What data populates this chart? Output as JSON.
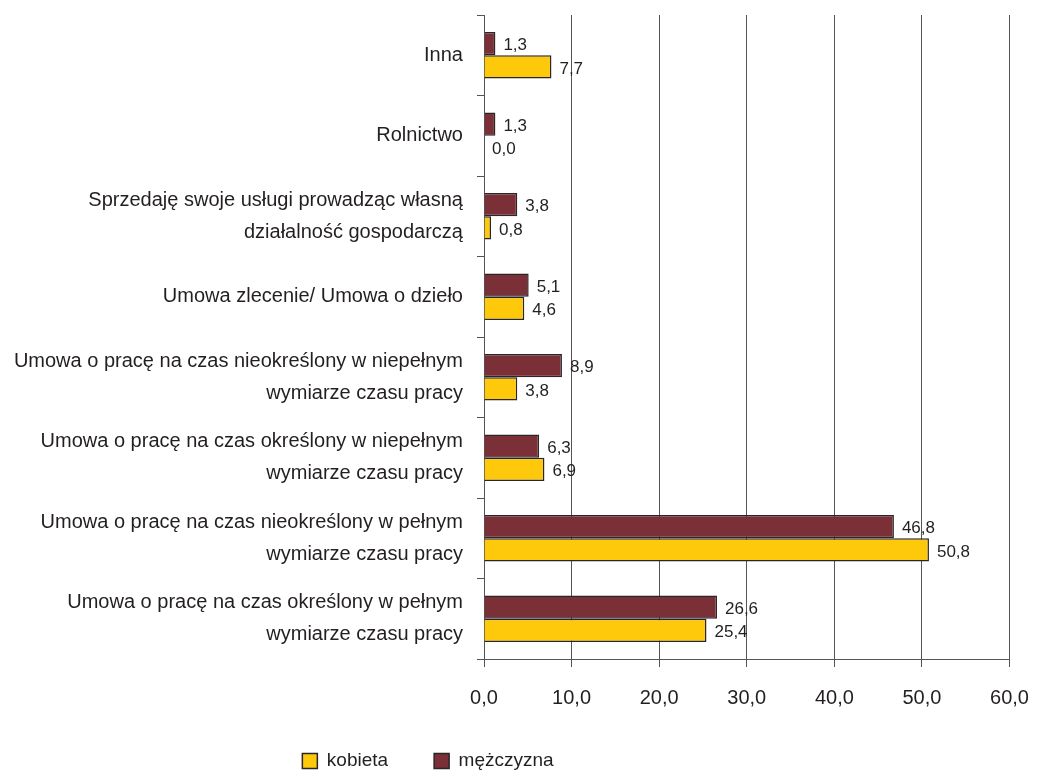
{
  "chart_data": {
    "type": "bar",
    "orientation": "horizontal",
    "categories": [
      "Inna",
      "Rolnictwo",
      "Sprzedaję swoje usługi prowadząc własną działalność gospodarczą",
      "Umowa zlecenie/ Umowa o dzieło",
      "Umowa o pracę na czas nieokreślony w niepełnym wymiarze czasu pracy",
      "Umowa o pracę na czas określony w niepełnym wymiarze czasu pracy",
      "Umowa o pracę na czas nieokreślony w pełnym wymiarze czasu pracy",
      "Umowa o pracę na czas określony w pełnym wymiarze czasu pracy"
    ],
    "series": [
      {
        "name": "kobieta",
        "color": "#ffc90b",
        "values": [
          7.7,
          0.0,
          0.8,
          4.6,
          3.8,
          6.9,
          50.8,
          25.4
        ],
        "value_labels": [
          "7,7",
          "0,0",
          "0,8",
          "4,6",
          "3,8",
          "6,9",
          "50,8",
          "25,4"
        ]
      },
      {
        "name": "mężczyzna",
        "color": "#7b2f36",
        "values": [
          1.3,
          1.3,
          3.8,
          5.1,
          8.9,
          6.3,
          46.8,
          26.6
        ],
        "value_labels": [
          "1,3",
          "1,3",
          "3,8",
          "5,1",
          "8,9",
          "6,3",
          "46,8",
          "26,6"
        ]
      }
    ],
    "xlim": [
      0,
      60
    ],
    "xticks": [
      {
        "value": 0,
        "label": "0,0"
      },
      {
        "value": 10,
        "label": "10,0"
      },
      {
        "value": 20,
        "label": "20,0"
      },
      {
        "value": 30,
        "label": "30,0"
      },
      {
        "value": 40,
        "label": "40,0"
      },
      {
        "value": 50,
        "label": "50,0"
      },
      {
        "value": 60,
        "label": "60,0"
      }
    ],
    "grid": "x",
    "legend": "bottom"
  }
}
